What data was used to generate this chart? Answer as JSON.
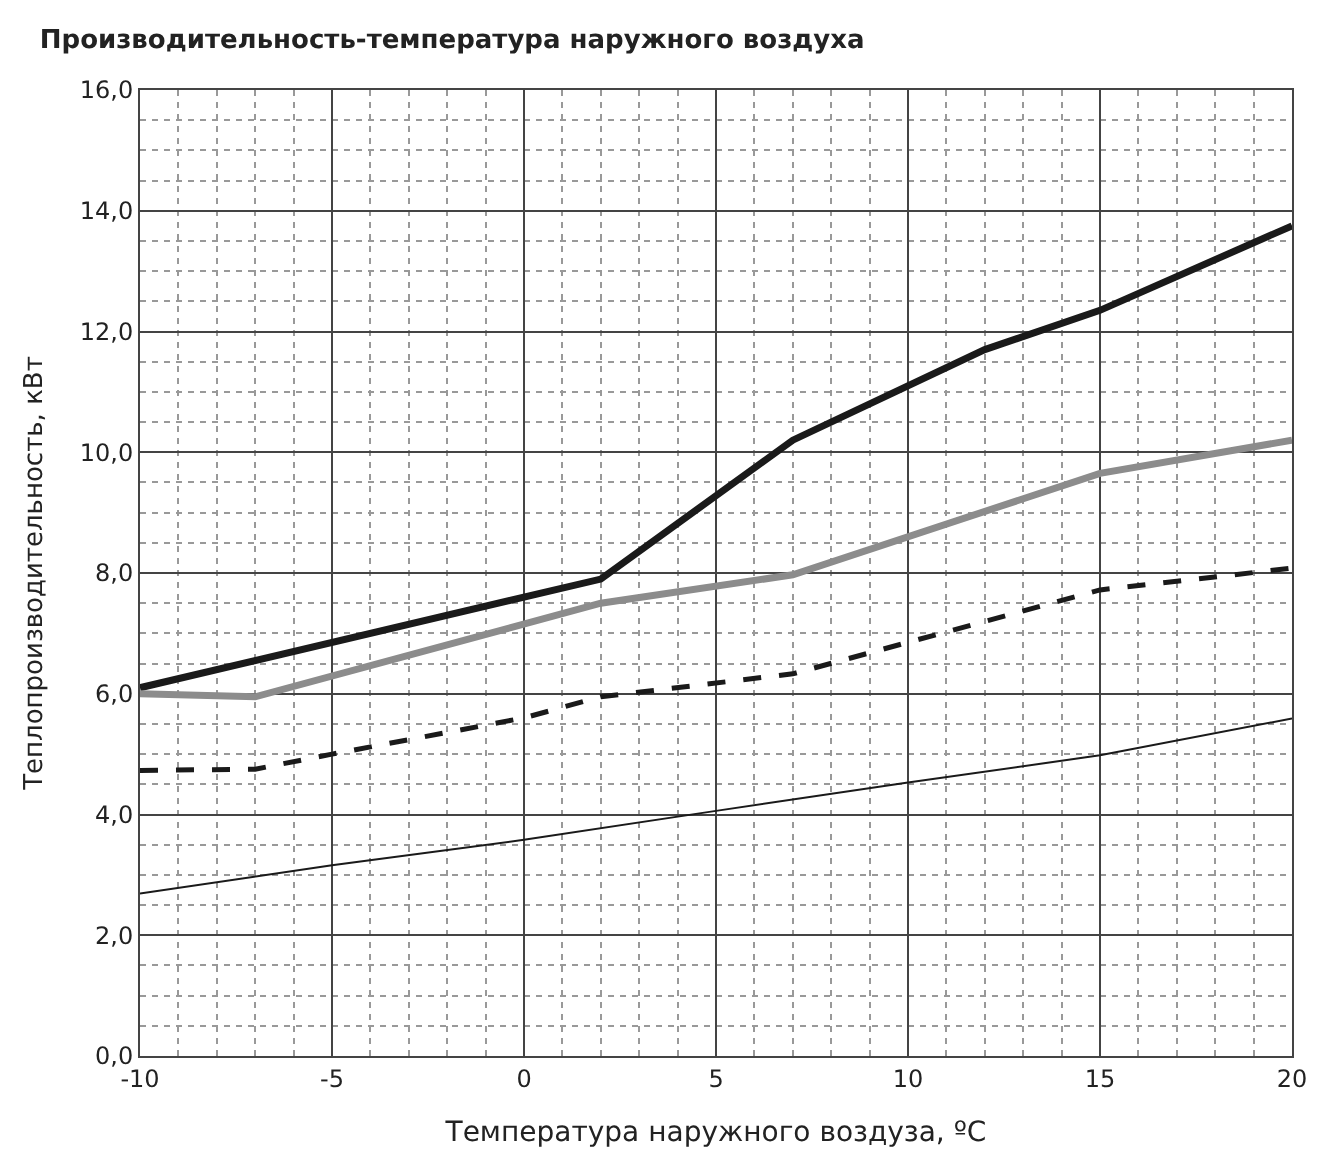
{
  "chart_data": {
    "type": "line",
    "title": "Производительность-температура наружного воздуха",
    "xlabel": "Температура наружного воздуза, ºC",
    "ylabel": "Теплопроизводительность, кВт",
    "xlim": [
      -10,
      20
    ],
    "xticks": [
      -10,
      -5,
      0,
      5,
      10,
      15,
      20
    ],
    "ylim": [
      0,
      16
    ],
    "yticks": [
      {
        "value": 0,
        "label": "0,0"
      },
      {
        "value": 2,
        "label": "2,0"
      },
      {
        "value": 4,
        "label": "4,0"
      },
      {
        "value": 6,
        "label": "6,0"
      },
      {
        "value": 8,
        "label": "8,0"
      },
      {
        "value": 10,
        "label": "10,0"
      },
      {
        "value": 12,
        "label": "12,0"
      },
      {
        "value": 14,
        "label": "14,0"
      },
      {
        "value": 16,
        "label": "16,0"
      }
    ],
    "grid": true,
    "marker": "none",
    "series": [
      {
        "color": "#1a1a1a",
        "line_style": "solid",
        "x": [
          -10,
          2,
          7,
          12,
          15,
          20
        ],
        "values": [
          6.1,
          7.9,
          10.2,
          11.7,
          12.35,
          13.75
        ]
      },
      {
        "color": "#8c8c8c",
        "line_style": "solid",
        "x": [
          -10,
          -7,
          2,
          7,
          15,
          20
        ],
        "values": [
          6.0,
          5.95,
          7.5,
          7.97,
          9.65,
          10.2
        ]
      },
      {
        "color": "#1a1a1a",
        "line_style": "dashed",
        "x": [
          -10,
          -7,
          -5,
          0,
          2,
          7,
          15,
          20
        ],
        "values": [
          4.73,
          4.75,
          5.0,
          5.6,
          5.95,
          6.33,
          7.72,
          8.08
        ]
      },
      {
        "color": "#1a1a1a",
        "line_style": "solid",
        "x": [
          -10,
          -5,
          0,
          5,
          10,
          15,
          20
        ],
        "values": [
          2.69,
          3.16,
          3.58,
          4.06,
          4.53,
          4.98,
          5.59
        ]
      }
    ]
  }
}
